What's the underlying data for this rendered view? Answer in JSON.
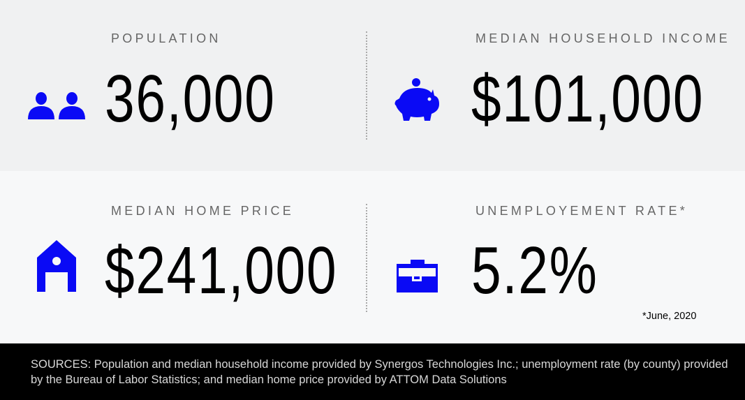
{
  "accent_color": "#0a0af5",
  "stats": [
    {
      "label": "POPULATION",
      "value": "36,000",
      "icon": "people-icon"
    },
    {
      "label": "MEDIAN HOUSEHOLD INCOME",
      "value": "$101,000",
      "icon": "piggy-bank-icon"
    },
    {
      "label": "MEDIAN HOME PRICE",
      "value": "$241,000",
      "icon": "house-icon"
    },
    {
      "label": "UNEMPLOYEMENT RATE*",
      "value": "5.2%",
      "icon": "briefcase-icon"
    }
  ],
  "footnote": "*June, 2020",
  "sources": "SOURCES: Population and median household income provided by Synergos Technologies Inc.; unemployment rate (by county) provided by the Bureau of Labor Statistics; and median home price provided by ATTOM Data Solutions"
}
